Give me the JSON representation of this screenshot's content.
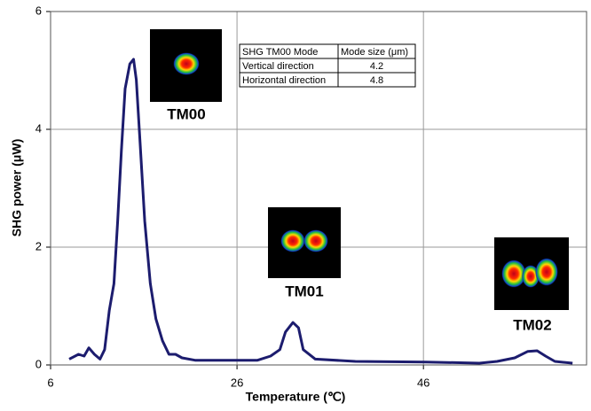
{
  "chart_data": {
    "type": "line",
    "x_label": "Temperature (℃)",
    "y_label": "SHG power (μW)",
    "xlim": [
      6,
      63.5
    ],
    "ylim": [
      0,
      6
    ],
    "xticks": [
      6,
      26,
      46
    ],
    "yticks": [
      0,
      2,
      4,
      6
    ],
    "grid": true,
    "series": [
      {
        "color": "#1c1c6e",
        "x": [
          8.0,
          9.0,
          9.6,
          10.1,
          10.7,
          11.3,
          11.8,
          12.3,
          12.8,
          13.2,
          13.6,
          14.0,
          14.5,
          14.9,
          15.2,
          15.6,
          16.1,
          16.7,
          17.3,
          18.0,
          18.7,
          19.4,
          20.1,
          21.5,
          25.3,
          28.2,
          29.6,
          30.6,
          31.2,
          32.0,
          32.6,
          33.1,
          34.4,
          38.7,
          46.3,
          52.0,
          53.9,
          55.8,
          57.2,
          58.2,
          59.1,
          60.1,
          62.0
        ],
        "values": [
          0.1,
          0.18,
          0.15,
          0.29,
          0.18,
          0.1,
          0.26,
          0.93,
          1.38,
          2.44,
          3.64,
          4.69,
          5.11,
          5.19,
          4.84,
          3.79,
          2.44,
          1.38,
          0.78,
          0.41,
          0.18,
          0.18,
          0.12,
          0.08,
          0.08,
          0.08,
          0.15,
          0.26,
          0.56,
          0.72,
          0.63,
          0.26,
          0.1,
          0.06,
          0.05,
          0.03,
          0.06,
          0.12,
          0.23,
          0.24,
          0.15,
          0.06,
          0.03
        ]
      }
    ],
    "annotations": [
      "TM00",
      "TM01",
      "TM02"
    ],
    "inset_table": {
      "header": [
        "SHG TM00 Mode",
        "Mode size (μm)"
      ],
      "rows": [
        [
          "Vertical direction",
          4.2
        ],
        [
          "Horizontal direction",
          4.8
        ]
      ]
    }
  }
}
